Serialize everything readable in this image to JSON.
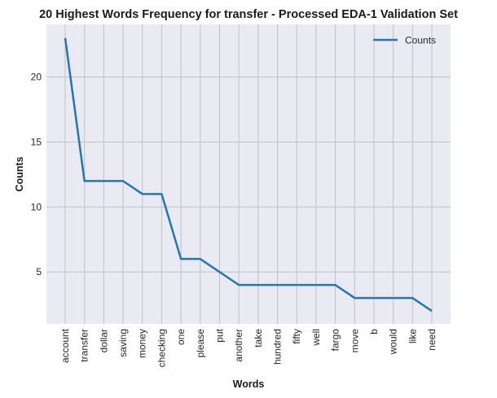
{
  "chart_data": {
    "type": "line",
    "title": "20 Highest Words Frequency for transfer - Processed EDA-1 Validation Set",
    "xlabel": "Words",
    "ylabel": "Counts",
    "categories": [
      "account",
      "transfer",
      "dollar",
      "saving",
      "money",
      "checking",
      "one",
      "please",
      "put",
      "another",
      "take",
      "hundred",
      "fifty",
      "well",
      "fargo",
      "move",
      "b",
      "would",
      "like",
      "need"
    ],
    "series": [
      {
        "name": "Counts",
        "values": [
          23,
          12,
          12,
          12,
          11,
          11,
          6,
          6,
          5,
          4,
          4,
          4,
          4,
          4,
          4,
          3,
          3,
          3,
          3,
          2
        ]
      }
    ],
    "ylim": [
      1.0,
      24.05
    ],
    "yticks": [
      5,
      10,
      15,
      20
    ],
    "grid": true,
    "legend_position": "top-right",
    "colors": {
      "line": "#1f77b4",
      "plot_bg": "#eaeaf2",
      "grid": "#c0c0c8"
    }
  }
}
